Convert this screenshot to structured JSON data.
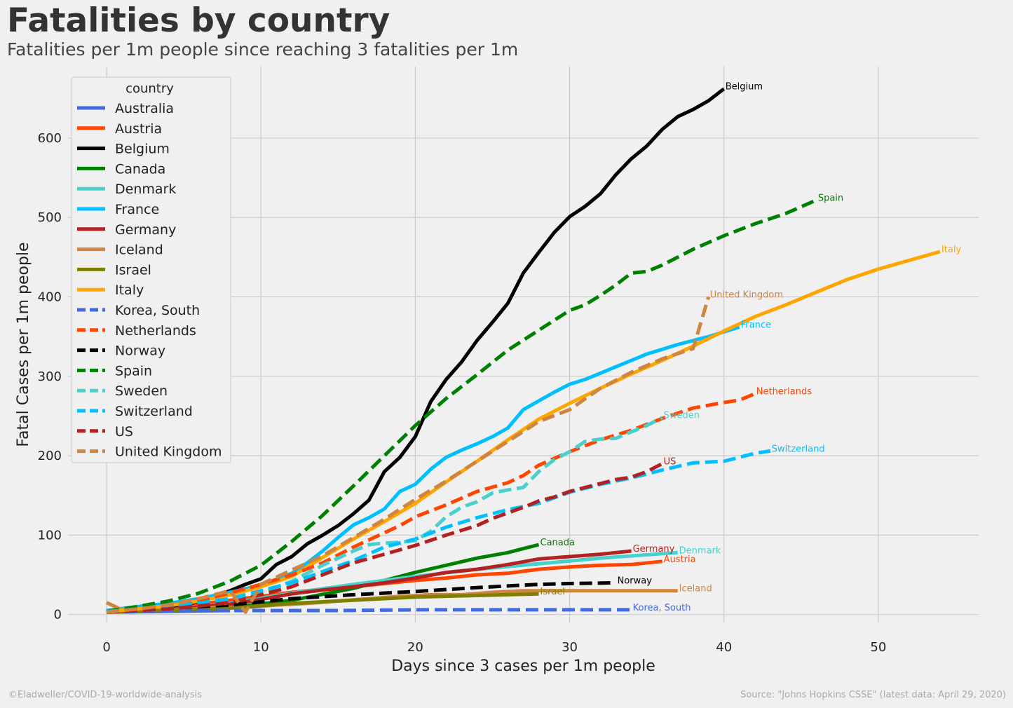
{
  "header": {
    "title": "Fatalities by country",
    "subtitle": "Fatalities per 1m people since reaching 3 fatalities per 1m"
  },
  "footer": {
    "credit": "©Eladweller/COVID-19-worldwide-analysis",
    "source": "Source: \"Johns Hopkins CSSE\" (latest data: April 29, 2020)"
  },
  "chart_data": {
    "type": "line",
    "title": "Fatalities by country",
    "subtitle": "Fatalities per 1m people since reaching 3 fatalities per 1m",
    "xlabel": "Days since 3 cases per 1m people",
    "ylabel": "Fatal Cases per 1m people",
    "xlim": [
      -2.5,
      56.5
    ],
    "ylim": [
      -10,
      690
    ],
    "xticks": [
      0,
      10,
      20,
      30,
      40,
      50
    ],
    "yticks": [
      0,
      100,
      200,
      300,
      400,
      500,
      600
    ],
    "grid": true,
    "legend_title": "country",
    "legend_position": "upper-left",
    "series": [
      {
        "name": "Australia",
        "color": "#4169e1",
        "dash": false,
        "x": [
          0,
          4,
          8
        ],
        "y": [
          3,
          4,
          5
        ]
      },
      {
        "name": "Austria",
        "color": "#ff4500",
        "dash": false,
        "x": [
          0,
          2,
          4,
          6,
          8,
          10,
          12,
          14,
          16,
          18,
          20,
          22,
          24,
          26,
          28,
          30,
          32,
          34,
          36
        ],
        "y": [
          3,
          6,
          9,
          13,
          18,
          23,
          28,
          32,
          35,
          39,
          43,
          46,
          50,
          52,
          57,
          60,
          62,
          63,
          67
        ]
      },
      {
        "name": "Belgium",
        "color": "#000000",
        "dash": false,
        "x": [
          0,
          2,
          4,
          6,
          8,
          9,
          10,
          11,
          12,
          13,
          14,
          15,
          16,
          17,
          18,
          19,
          20,
          21,
          22,
          23,
          24,
          25,
          26,
          27,
          28,
          29,
          30,
          31,
          32,
          33,
          34,
          35,
          36,
          37,
          38,
          39,
          40
        ],
        "y": [
          3,
          6,
          10,
          16,
          30,
          38,
          45,
          63,
          73,
          89,
          100,
          112,
          127,
          144,
          180,
          198,
          224,
          268,
          296,
          318,
          345,
          368,
          392,
          430,
          456,
          481,
          501,
          514,
          530,
          554,
          574,
          590,
          611,
          627,
          636,
          647,
          662
        ]
      },
      {
        "name": "Canada",
        "color": "#008000",
        "dash": false,
        "x": [
          0,
          4,
          8,
          12,
          16,
          18,
          20,
          22,
          24,
          26,
          27,
          28
        ],
        "y": [
          3,
          5,
          9,
          18,
          33,
          43,
          53,
          62,
          71,
          78,
          83,
          88
        ]
      },
      {
        "name": "Denmark",
        "color": "#48d1cc",
        "dash": false,
        "x": [
          0,
          4,
          8,
          12,
          16,
          20,
          24,
          28,
          32,
          37
        ],
        "y": [
          3,
          6,
          14,
          27,
          38,
          48,
          57,
          64,
          71,
          78
        ]
      },
      {
        "name": "France",
        "color": "#00bfff",
        "dash": false,
        "x": [
          0,
          2,
          4,
          6,
          8,
          10,
          12,
          13,
          14,
          15,
          16,
          17,
          18,
          19,
          20,
          21,
          22,
          23,
          24,
          25,
          26,
          27,
          28,
          29,
          30,
          31,
          32,
          33,
          34,
          35,
          36,
          37,
          38,
          39,
          40,
          41
        ],
        "y": [
          5,
          10,
          14,
          20,
          28,
          37,
          52,
          65,
          80,
          97,
          113,
          122,
          133,
          155,
          164,
          183,
          198,
          207,
          215,
          224,
          235,
          258,
          269,
          280,
          290,
          296,
          304,
          312,
          320,
          328,
          334,
          340,
          345,
          350,
          356,
          362
        ]
      },
      {
        "name": "Germany",
        "color": "#b22222",
        "dash": false,
        "x": [
          0,
          4,
          8,
          10,
          12,
          14,
          16,
          18,
          20,
          22,
          24,
          26,
          28,
          30,
          32,
          34
        ],
        "y": [
          3,
          6,
          13,
          19,
          26,
          31,
          35,
          40,
          46,
          53,
          57,
          63,
          70,
          73,
          76,
          80
        ]
      },
      {
        "name": "Iceland",
        "color": "#cd853f",
        "dash": false,
        "x": [
          0,
          1,
          3,
          5,
          7,
          9,
          11,
          13,
          15,
          17,
          19,
          21,
          23,
          25,
          27,
          29,
          31,
          33,
          35,
          37
        ],
        "y": [
          15,
          6,
          6,
          6,
          9,
          9,
          12,
          14,
          17,
          20,
          23,
          25,
          25,
          28,
          30,
          30,
          30,
          30,
          30,
          30
        ]
      },
      {
        "name": "Israel",
        "color": "#808000",
        "dash": false,
        "x": [
          0,
          4,
          8,
          12,
          16,
          20,
          24,
          28
        ],
        "y": [
          3,
          5,
          8,
          14,
          18,
          22,
          24,
          26
        ]
      },
      {
        "name": "Italy",
        "color": "#ffa500",
        "dash": false,
        "x": [
          0,
          2,
          4,
          6,
          8,
          10,
          12,
          14,
          16,
          18,
          20,
          22,
          24,
          26,
          28,
          30,
          32,
          34,
          36,
          38,
          40,
          42,
          44,
          46,
          48,
          50,
          52,
          54
        ],
        "y": [
          4,
          7,
          11,
          17,
          25,
          35,
          48,
          72,
          95,
          117,
          140,
          167,
          193,
          220,
          246,
          266,
          285,
          303,
          320,
          338,
          357,
          375,
          390,
          406,
          422,
          435,
          446,
          457
        ]
      },
      {
        "name": "Korea, South",
        "color": "#4169e1",
        "dash": true,
        "x": [
          0,
          6,
          10,
          15,
          20,
          25,
          30,
          34
        ],
        "y": [
          3,
          5,
          5,
          5,
          6,
          6,
          6,
          6
        ]
      },
      {
        "name": "Netherlands",
        "color": "#ff4500",
        "dash": true,
        "x": [
          0,
          2,
          4,
          6,
          8,
          10,
          12,
          14,
          16,
          18,
          19,
          20,
          22,
          24,
          26,
          27,
          28,
          30,
          32,
          34,
          36,
          38,
          40,
          41,
          42
        ],
        "y": [
          4,
          8,
          12,
          18,
          27,
          38,
          50,
          65,
          85,
          103,
          112,
          123,
          138,
          155,
          166,
          175,
          188,
          205,
          220,
          232,
          247,
          260,
          267,
          270,
          278
        ]
      },
      {
        "name": "Norway",
        "color": "#000000",
        "dash": true,
        "x": [
          0,
          4,
          8,
          12,
          16,
          20,
          24,
          26,
          28,
          30,
          33
        ],
        "y": [
          3,
          8,
          12,
          20,
          25,
          29,
          34,
          36,
          38,
          39,
          40
        ]
      },
      {
        "name": "Spain",
        "color": "#008000",
        "dash": true,
        "x": [
          0,
          2,
          4,
          6,
          8,
          10,
          12,
          14,
          16,
          18,
          20,
          22,
          24,
          26,
          28,
          30,
          31,
          32,
          33,
          34,
          35,
          36,
          38,
          40,
          42,
          44,
          46
        ],
        "y": [
          4,
          10,
          17,
          27,
          42,
          62,
          92,
          125,
          162,
          200,
          238,
          272,
          302,
          333,
          358,
          383,
          390,
          402,
          415,
          430,
          432,
          440,
          460,
          477,
          492,
          505,
          522
        ]
      },
      {
        "name": "Sweden",
        "color": "#48d1cc",
        "dash": true,
        "x": [
          0,
          4,
          8,
          10,
          12,
          14,
          16,
          17,
          18,
          19,
          20,
          21,
          22,
          23,
          24,
          25,
          26,
          27,
          28,
          29,
          30,
          31,
          32,
          33,
          34,
          35,
          36
        ],
        "y": [
          3,
          7,
          15,
          27,
          42,
          62,
          80,
          88,
          90,
          91,
          93,
          105,
          123,
          135,
          142,
          153,
          157,
          160,
          180,
          195,
          205,
          218,
          221,
          222,
          230,
          238,
          248
        ]
      },
      {
        "name": "Switzerland",
        "color": "#00bfff",
        "dash": true,
        "x": [
          0,
          4,
          8,
          12,
          16,
          18,
          20,
          22,
          24,
          26,
          28,
          30,
          32,
          34,
          36,
          38,
          40,
          42,
          43
        ],
        "y": [
          4,
          9,
          20,
          40,
          68,
          85,
          95,
          110,
          122,
          132,
          140,
          154,
          164,
          172,
          182,
          191,
          193,
          203,
          206
        ]
      },
      {
        "name": "US",
        "color": "#b22222",
        "dash": true,
        "x": [
          0,
          4,
          8,
          12,
          16,
          18,
          20,
          22,
          24,
          25,
          26,
          27,
          28,
          29,
          30,
          31,
          32,
          33,
          34,
          35,
          36
        ],
        "y": [
          3,
          7,
          15,
          35,
          65,
          76,
          87,
          100,
          112,
          121,
          128,
          135,
          143,
          148,
          155,
          160,
          165,
          170,
          173,
          180,
          190
        ]
      },
      {
        "name": "United Kingdom",
        "color": "#cd853f",
        "dash": true,
        "x": [
          0,
          2,
          4,
          6,
          8,
          9,
          10,
          12,
          14,
          16,
          18,
          20,
          22,
          24,
          26,
          28,
          30,
          32,
          34,
          36,
          38,
          39
        ],
        "y": [
          3,
          7,
          12,
          20,
          30,
          3,
          38,
          56,
          74,
          97,
          120,
          145,
          168,
          193,
          218,
          243,
          258,
          285,
          305,
          322,
          335,
          400
        ]
      }
    ]
  }
}
